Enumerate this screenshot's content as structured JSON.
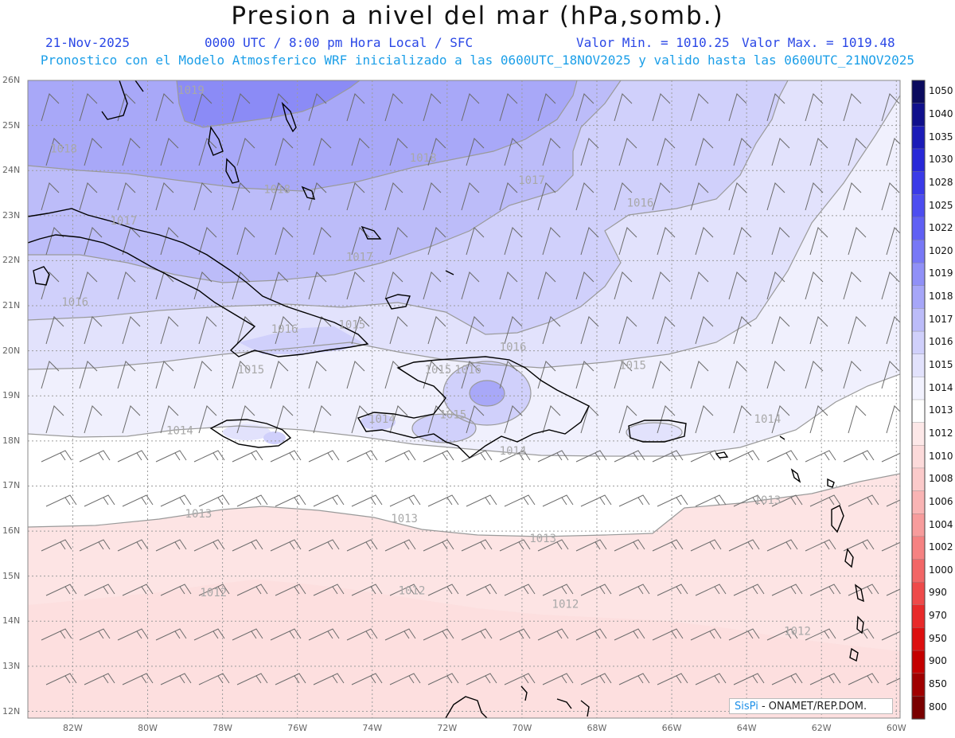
{
  "header": {
    "title": "Presion a nivel del mar (hPa,somb.)",
    "date": "21-Nov-2025",
    "time": "0000 UTC / 8:00 pm Hora Local / SFC",
    "min_label": "Valor Min. = 1010.25",
    "max_label": "Valor Max. = 1019.48",
    "forecast_note": "Pronostico con el Modelo Atmosferico WRF inicializado a las 0600UTC_18NOV2025 y valido hasta las  0600UTC_21NOV2025"
  },
  "map": {
    "region": {
      "lon_min": -83.2,
      "lon_max": -59.9,
      "lat_min": 11.85,
      "lat_max": 26.0
    },
    "lat_labels": [
      "26N",
      "25N",
      "24N",
      "23N",
      "22N",
      "21N",
      "20N",
      "19N",
      "18N",
      "17N",
      "16N",
      "15N",
      "14N",
      "13N",
      "12N"
    ],
    "lat_values": [
      26,
      25,
      24,
      23,
      22,
      21,
      20,
      19,
      18,
      17,
      16,
      15,
      14,
      13,
      12
    ],
    "lon_labels": [
      "82W",
      "80W",
      "78W",
      "76W",
      "74W",
      "72W",
      "70W",
      "68W",
      "66W",
      "64W",
      "62W",
      "60W"
    ],
    "lon_values": [
      -82,
      -80,
      -78,
      -76,
      -74,
      -72,
      -70,
      -68,
      -66,
      -64,
      -62,
      -60
    ],
    "contour_labels": [
      {
        "text": "1019",
        "lon": -79.2,
        "lat": 25.7
      },
      {
        "text": "1018",
        "lon": -82.6,
        "lat": 24.4
      },
      {
        "text": "1018",
        "lon": -73.0,
        "lat": 24.2
      },
      {
        "text": "1018",
        "lon": -76.9,
        "lat": 23.5
      },
      {
        "text": "1017",
        "lon": -70.1,
        "lat": 23.7
      },
      {
        "text": "1016",
        "lon": -67.2,
        "lat": 23.2
      },
      {
        "text": "1017",
        "lon": -81.0,
        "lat": 22.8
      },
      {
        "text": "1017",
        "lon": -74.7,
        "lat": 22.0
      },
      {
        "text": "1016",
        "lon": -82.3,
        "lat": 21.0
      },
      {
        "text": "1016",
        "lon": -76.7,
        "lat": 20.4
      },
      {
        "text": "1015",
        "lon": -74.9,
        "lat": 20.5
      },
      {
        "text": "1016",
        "lon": -70.6,
        "lat": 20.0
      },
      {
        "text": "1015",
        "lon": -77.6,
        "lat": 19.5
      },
      {
        "text": "1015",
        "lon": -72.6,
        "lat": 19.5
      },
      {
        "text": "1016",
        "lon": -71.8,
        "lat": 19.5
      },
      {
        "text": "1015",
        "lon": -67.4,
        "lat": 19.6
      },
      {
        "text": "1014",
        "lon": -79.5,
        "lat": 18.15
      },
      {
        "text": "1014",
        "lon": -74.1,
        "lat": 18.4
      },
      {
        "text": "1015",
        "lon": -72.2,
        "lat": 18.5
      },
      {
        "text": "1014",
        "lon": -70.6,
        "lat": 17.7
      },
      {
        "text": "1014",
        "lon": -63.8,
        "lat": 18.4
      },
      {
        "text": "1013",
        "lon": -79.0,
        "lat": 16.3
      },
      {
        "text": "1013",
        "lon": -73.5,
        "lat": 16.2
      },
      {
        "text": "1013",
        "lon": -63.8,
        "lat": 16.6
      },
      {
        "text": "1013",
        "lon": -69.8,
        "lat": 15.75
      },
      {
        "text": "1012",
        "lon": -78.6,
        "lat": 14.55
      },
      {
        "text": "1012",
        "lon": -73.3,
        "lat": 14.6
      },
      {
        "text": "1012",
        "lon": -69.2,
        "lat": 14.3
      },
      {
        "text": "1012",
        "lon": -63.0,
        "lat": 13.7
      }
    ]
  },
  "colorbar": {
    "levels": [
      "1050",
      "1040",
      "1035",
      "1030",
      "1028",
      "1025",
      "1022",
      "1020",
      "1019",
      "1018",
      "1017",
      "1016",
      "1015",
      "1014",
      "1013",
      "1012",
      "1010",
      "1008",
      "1006",
      "1004",
      "1002",
      "1000",
      "990",
      "970",
      "950",
      "900",
      "850",
      "800"
    ],
    "colors": [
      "#0b0b5e",
      "#10108c",
      "#1c1cb8",
      "#2828d8",
      "#3a3ae8",
      "#4d4df0",
      "#6060f4",
      "#7878f6",
      "#9090f7",
      "#a6a6f8",
      "#bcbcf9",
      "#d0d0fb",
      "#e2e2fc",
      "#f2f2fe",
      "#ffffff",
      "#fde8e8",
      "#fcdada",
      "#fbcaca",
      "#f9b4b4",
      "#f79c9c",
      "#f58282",
      "#f26666",
      "#ee4a4a",
      "#e82a2a",
      "#dd0f0f",
      "#c40000",
      "#a00000",
      "#7a0000"
    ]
  },
  "credit": {
    "brand": "SisPi",
    "text": " - ONAMET/REP.DOM."
  },
  "colors": {
    "title": "#111111",
    "subtitle": "#2a47e6",
    "note": "#1c9fe8"
  }
}
